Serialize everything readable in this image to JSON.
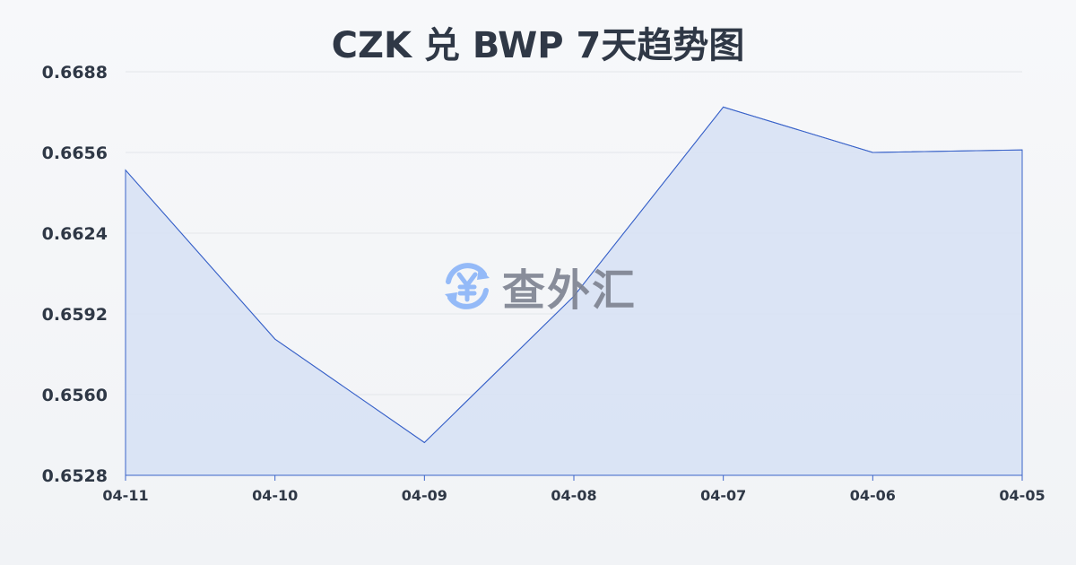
{
  "chart_data": {
    "type": "area",
    "title": "CZK 兑 BWP 7天趋势图",
    "categories": [
      "04-11",
      "04-10",
      "04-09",
      "04-08",
      "04-07",
      "04-06",
      "04-05"
    ],
    "series": [
      {
        "values": [
          0.6649,
          0.6582,
          0.6541,
          0.6599,
          0.6674,
          0.6656,
          0.6657
        ]
      }
    ],
    "yticks": [
      "0.6528",
      "0.6560",
      "0.6592",
      "0.6624",
      "0.6656",
      "0.6688"
    ],
    "ylim": [
      0.6528,
      0.6688
    ],
    "grid": true,
    "colors": {
      "line": "#3a63c9",
      "fill": "#d6e0f5"
    }
  },
  "watermark": {
    "text": "查外汇",
    "icon": "yuan-exchange-icon",
    "color": "#8ab4f8"
  }
}
